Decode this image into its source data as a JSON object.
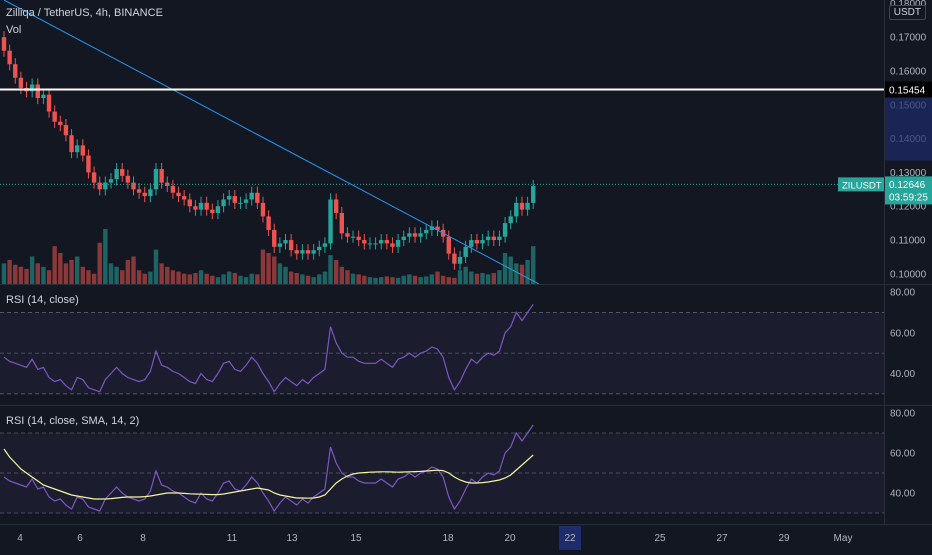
{
  "header": {
    "title": "Zilliqa / TetherUS, 4h, BINANCE",
    "volume_label": "Vol",
    "currency": "USDT"
  },
  "colors": {
    "background": "#131722",
    "bull": "#26a69a",
    "bear": "#ef5350",
    "rsi_line": "#7e57c2",
    "sma_line": "#f5f5a0",
    "trendline": "#2196f3",
    "axis_text": "#b2b5be"
  },
  "price_axis": {
    "ticks": [
      "0.18000",
      "0.17000",
      "0.16000",
      "0.15000",
      "0.14000",
      "0.13000",
      "0.12000",
      "0.11000",
      "0.10000"
    ],
    "horizontal_level": "0.15454",
    "current_symbol": "ZILUSDT",
    "current_price": "0.12646",
    "countdown": "03:59:25"
  },
  "x_axis": {
    "ticks": [
      "4",
      "6",
      "8",
      "11",
      "13",
      "15",
      "18",
      "20",
      "22",
      "25",
      "27",
      "29",
      "May"
    ],
    "highlighted": "22"
  },
  "rsi_panel_1": {
    "title": "RSI (14, close)",
    "ticks": [
      "80.00",
      "60.00",
      "40.00"
    ]
  },
  "rsi_panel_2": {
    "title": "RSI (14, close, SMA, 14, 2)",
    "ticks": [
      "80.00",
      "60.00",
      "40.00"
    ]
  },
  "chart_data": {
    "type": "candlestick",
    "title": "Zilliqa / TetherUS, 4h, BINANCE",
    "price_ylim": [
      0.097,
      0.181
    ],
    "horizontal_line": 0.15454,
    "last_price": 0.12646,
    "trendline": {
      "from": [
        0,
        0.181
      ],
      "to": [
        95,
        0.097
      ]
    },
    "candles_close": [
      0.166,
      0.162,
      0.158,
      0.155,
      0.154,
      0.156,
      0.152,
      0.153,
      0.148,
      0.145,
      0.144,
      0.141,
      0.136,
      0.138,
      0.135,
      0.13,
      0.127,
      0.125,
      0.127,
      0.128,
      0.131,
      0.129,
      0.127,
      0.125,
      0.124,
      0.123,
      0.125,
      0.131,
      0.127,
      0.126,
      0.124,
      0.123,
      0.122,
      0.12,
      0.119,
      0.121,
      0.119,
      0.118,
      0.12,
      0.122,
      0.123,
      0.121,
      0.121,
      0.122,
      0.124,
      0.121,
      0.117,
      0.113,
      0.108,
      0.109,
      0.11,
      0.107,
      0.106,
      0.107,
      0.106,
      0.107,
      0.108,
      0.109,
      0.122,
      0.118,
      0.112,
      0.111,
      0.111,
      0.11,
      0.109,
      0.109,
      0.109,
      0.11,
      0.109,
      0.108,
      0.11,
      0.111,
      0.112,
      0.111,
      0.112,
      0.113,
      0.114,
      0.113,
      0.111,
      0.106,
      0.103,
      0.105,
      0.108,
      0.11,
      0.109,
      0.11,
      0.111,
      0.11,
      0.111,
      0.115,
      0.117,
      0.121,
      0.119,
      0.121,
      0.126
    ],
    "volume": [
      30,
      35,
      28,
      25,
      22,
      40,
      30,
      25,
      20,
      55,
      45,
      30,
      35,
      40,
      25,
      20,
      15,
      60,
      80,
      30,
      25,
      20,
      35,
      40,
      20,
      15,
      18,
      50,
      30,
      25,
      20,
      18,
      15,
      14,
      16,
      20,
      15,
      12,
      10,
      14,
      18,
      16,
      12,
      10,
      15,
      14,
      50,
      45,
      40,
      30,
      25,
      18,
      16,
      14,
      12,
      10,
      14,
      18,
      42,
      35,
      25,
      20,
      15,
      14,
      12,
      10,
      9,
      10,
      11,
      10,
      9,
      12,
      14,
      12,
      10,
      11,
      14,
      18,
      12,
      10,
      9,
      20,
      25,
      18,
      15,
      16,
      14,
      16,
      20,
      45,
      40,
      30,
      28,
      35,
      55
    ],
    "rsi": [
      48,
      46,
      45,
      44,
      43,
      47,
      42,
      43,
      38,
      36,
      37,
      34,
      32,
      38,
      37,
      33,
      32,
      31,
      37,
      40,
      43,
      40,
      38,
      37,
      36,
      37,
      41,
      51,
      44,
      43,
      41,
      40,
      38,
      36,
      35,
      40,
      37,
      36,
      40,
      45,
      46,
      42,
      41,
      44,
      48,
      45,
      40,
      36,
      31,
      35,
      38,
      36,
      34,
      37,
      35,
      38,
      40,
      42,
      63,
      55,
      50,
      48,
      48,
      46,
      45,
      45,
      45,
      47,
      45,
      43,
      47,
      48,
      50,
      48,
      50,
      51,
      53,
      52,
      48,
      38,
      32,
      36,
      42,
      47,
      45,
      48,
      50,
      49,
      51,
      60,
      63,
      70,
      66,
      70,
      74
    ],
    "rsi_sma": [
      62,
      58,
      55,
      52,
      50,
      48,
      46,
      44,
      43,
      42,
      41,
      40,
      39,
      38.5,
      38,
      37.5,
      37,
      37,
      37,
      37.2,
      37.5,
      37.8,
      38,
      38,
      38,
      38.2,
      38.5,
      39,
      39.5,
      40,
      40,
      40,
      39.8,
      39.6,
      39.5,
      39.4,
      39.3,
      39.2,
      39.2,
      39.5,
      40,
      40.5,
      41,
      41.5,
      42,
      42.5,
      42,
      41.5,
      40,
      39,
      38.5,
      38,
      37.5,
      37.5,
      37.4,
      37.5,
      38,
      39,
      42,
      45,
      47,
      48.5,
      49.5,
      50,
      50.2,
      50.4,
      50.5,
      50.6,
      50.6,
      50.5,
      50.4,
      50.5,
      50.6,
      50.7,
      50.8,
      51,
      51.2,
      51.4,
      51.2,
      50,
      48,
      46.5,
      45.5,
      45,
      45,
      45.2,
      45.5,
      46,
      46.5,
      47.5,
      49,
      51.5,
      54,
      56.5,
      59
    ],
    "rsi_ylim": [
      25,
      82
    ],
    "rsi_bands": [
      70,
      50,
      30
    ]
  }
}
